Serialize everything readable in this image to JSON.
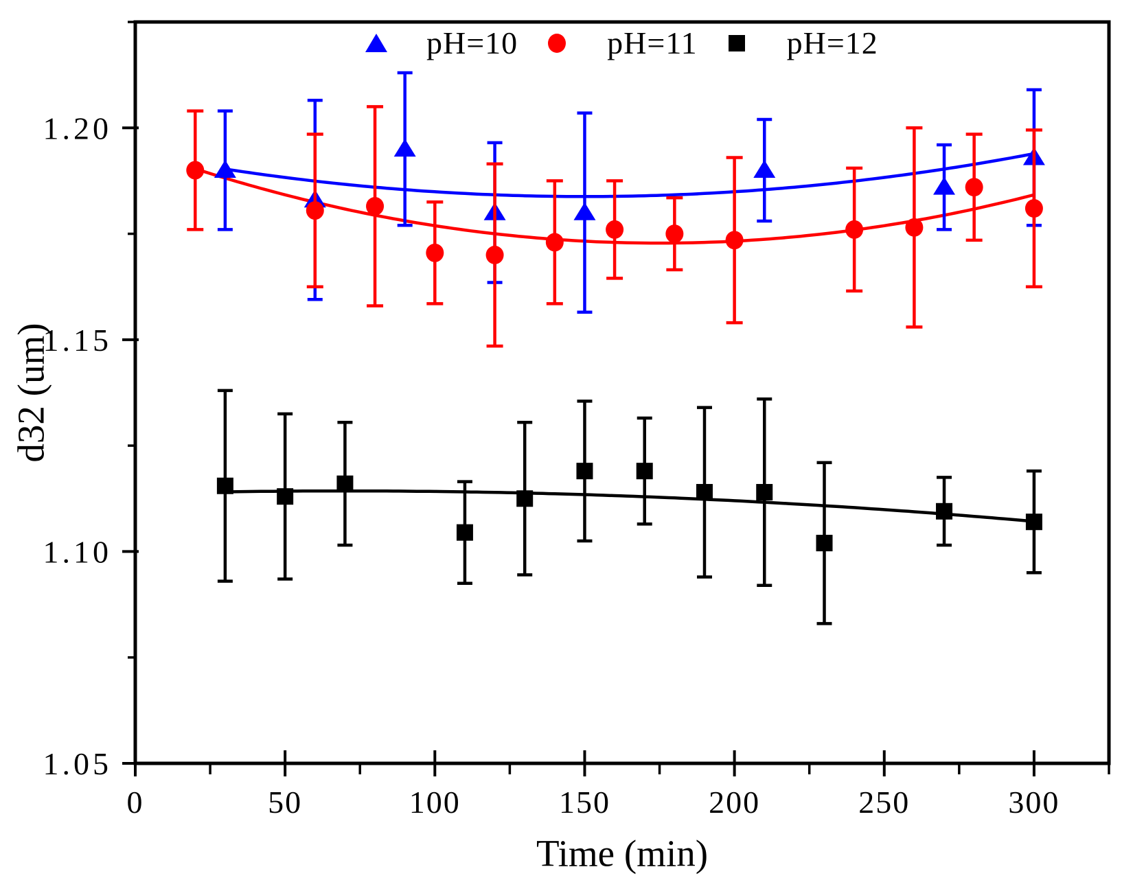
{
  "figure": {
    "background": "#ffffff",
    "frame_color": "#000000"
  },
  "chart_data": {
    "type": "scatter",
    "title": "",
    "xlabel": "Time (min)",
    "ylabel": "d32 (um)",
    "xlim": [
      0,
      325
    ],
    "ylim": [
      1.05,
      1.225
    ],
    "grid": false,
    "legend_position": "top-center-inside",
    "x_ticks": [
      0,
      50,
      100,
      150,
      200,
      250,
      300
    ],
    "x_tick_labels": [
      "0",
      "50",
      "100",
      "150",
      "200",
      "250",
      "300"
    ],
    "x_minor_ticks": [
      25,
      75,
      125,
      175,
      225,
      275,
      325
    ],
    "y_ticks": [
      1.05,
      1.1,
      1.15,
      1.2
    ],
    "y_tick_labels": [
      "1.05",
      "1.10",
      "1.15",
      "1.20"
    ],
    "y_minor_ticks": [
      1.075,
      1.125,
      1.175,
      1.225
    ],
    "series": [
      {
        "name": "pH=10",
        "marker": "triangle",
        "color": "#0000ff",
        "points": [
          [
            30,
            1.19,
            0.014
          ],
          [
            60,
            1.183,
            0.0235
          ],
          [
            90,
            1.195,
            0.018
          ],
          [
            120,
            1.18,
            0.0165
          ],
          [
            150,
            1.18,
            0.0235
          ],
          [
            210,
            1.19,
            0.012
          ],
          [
            270,
            1.186,
            0.01
          ],
          [
            300,
            1.193,
            0.016
          ]
        ]
      },
      {
        "name": "pH=11",
        "marker": "circle",
        "color": "#ff0000",
        "points": [
          [
            20,
            1.19,
            0.014
          ],
          [
            60,
            1.1805,
            0.018
          ],
          [
            80,
            1.1815,
            0.0235
          ],
          [
            100,
            1.1705,
            0.012
          ],
          [
            120,
            1.17,
            0.0215
          ],
          [
            140,
            1.173,
            0.0145
          ],
          [
            160,
            1.176,
            0.0115
          ],
          [
            180,
            1.175,
            0.0085
          ],
          [
            200,
            1.1735,
            0.0195
          ],
          [
            240,
            1.176,
            0.0145
          ],
          [
            260,
            1.1765,
            0.0235
          ],
          [
            280,
            1.186,
            0.0125
          ],
          [
            300,
            1.181,
            0.0185
          ]
        ]
      },
      {
        "name": "pH=12",
        "marker": "square",
        "color": "#000000",
        "points": [
          [
            30,
            1.1155,
            0.0225
          ],
          [
            50,
            1.113,
            0.0195
          ],
          [
            70,
            1.116,
            0.0145
          ],
          [
            110,
            1.1045,
            0.012
          ],
          [
            130,
            1.1125,
            0.018
          ],
          [
            150,
            1.119,
            0.0165
          ],
          [
            170,
            1.119,
            0.0125
          ],
          [
            190,
            1.114,
            0.02
          ],
          [
            210,
            1.114,
            0.022
          ],
          [
            230,
            1.102,
            0.019
          ],
          [
            270,
            1.1095,
            0.008
          ],
          [
            300,
            1.107,
            0.012
          ]
        ]
      }
    ],
    "fit_curves": [
      {
        "series": "pH=10",
        "color": "#0000ff",
        "model": "quadratic",
        "y0": 1.1838,
        "t0": 150,
        "a": 4.5e-07,
        "t_range": [
          30,
          300
        ]
      },
      {
        "series": "pH=11",
        "color": "#ff0000",
        "model": "quadratic",
        "y0": 1.1728,
        "t0": 175,
        "a": 7.3e-07,
        "t_range": [
          20,
          300
        ]
      },
      {
        "series": "pH=12",
        "color": "#000000",
        "model": "quadratic",
        "y0": 1.1143,
        "t0": 70,
        "a": -1.36e-07,
        "t_range": [
          30,
          300
        ]
      }
    ]
  },
  "legend": {
    "items": [
      {
        "label": "pH=10"
      },
      {
        "label": "pH=11"
      },
      {
        "label": "pH=12"
      }
    ]
  }
}
